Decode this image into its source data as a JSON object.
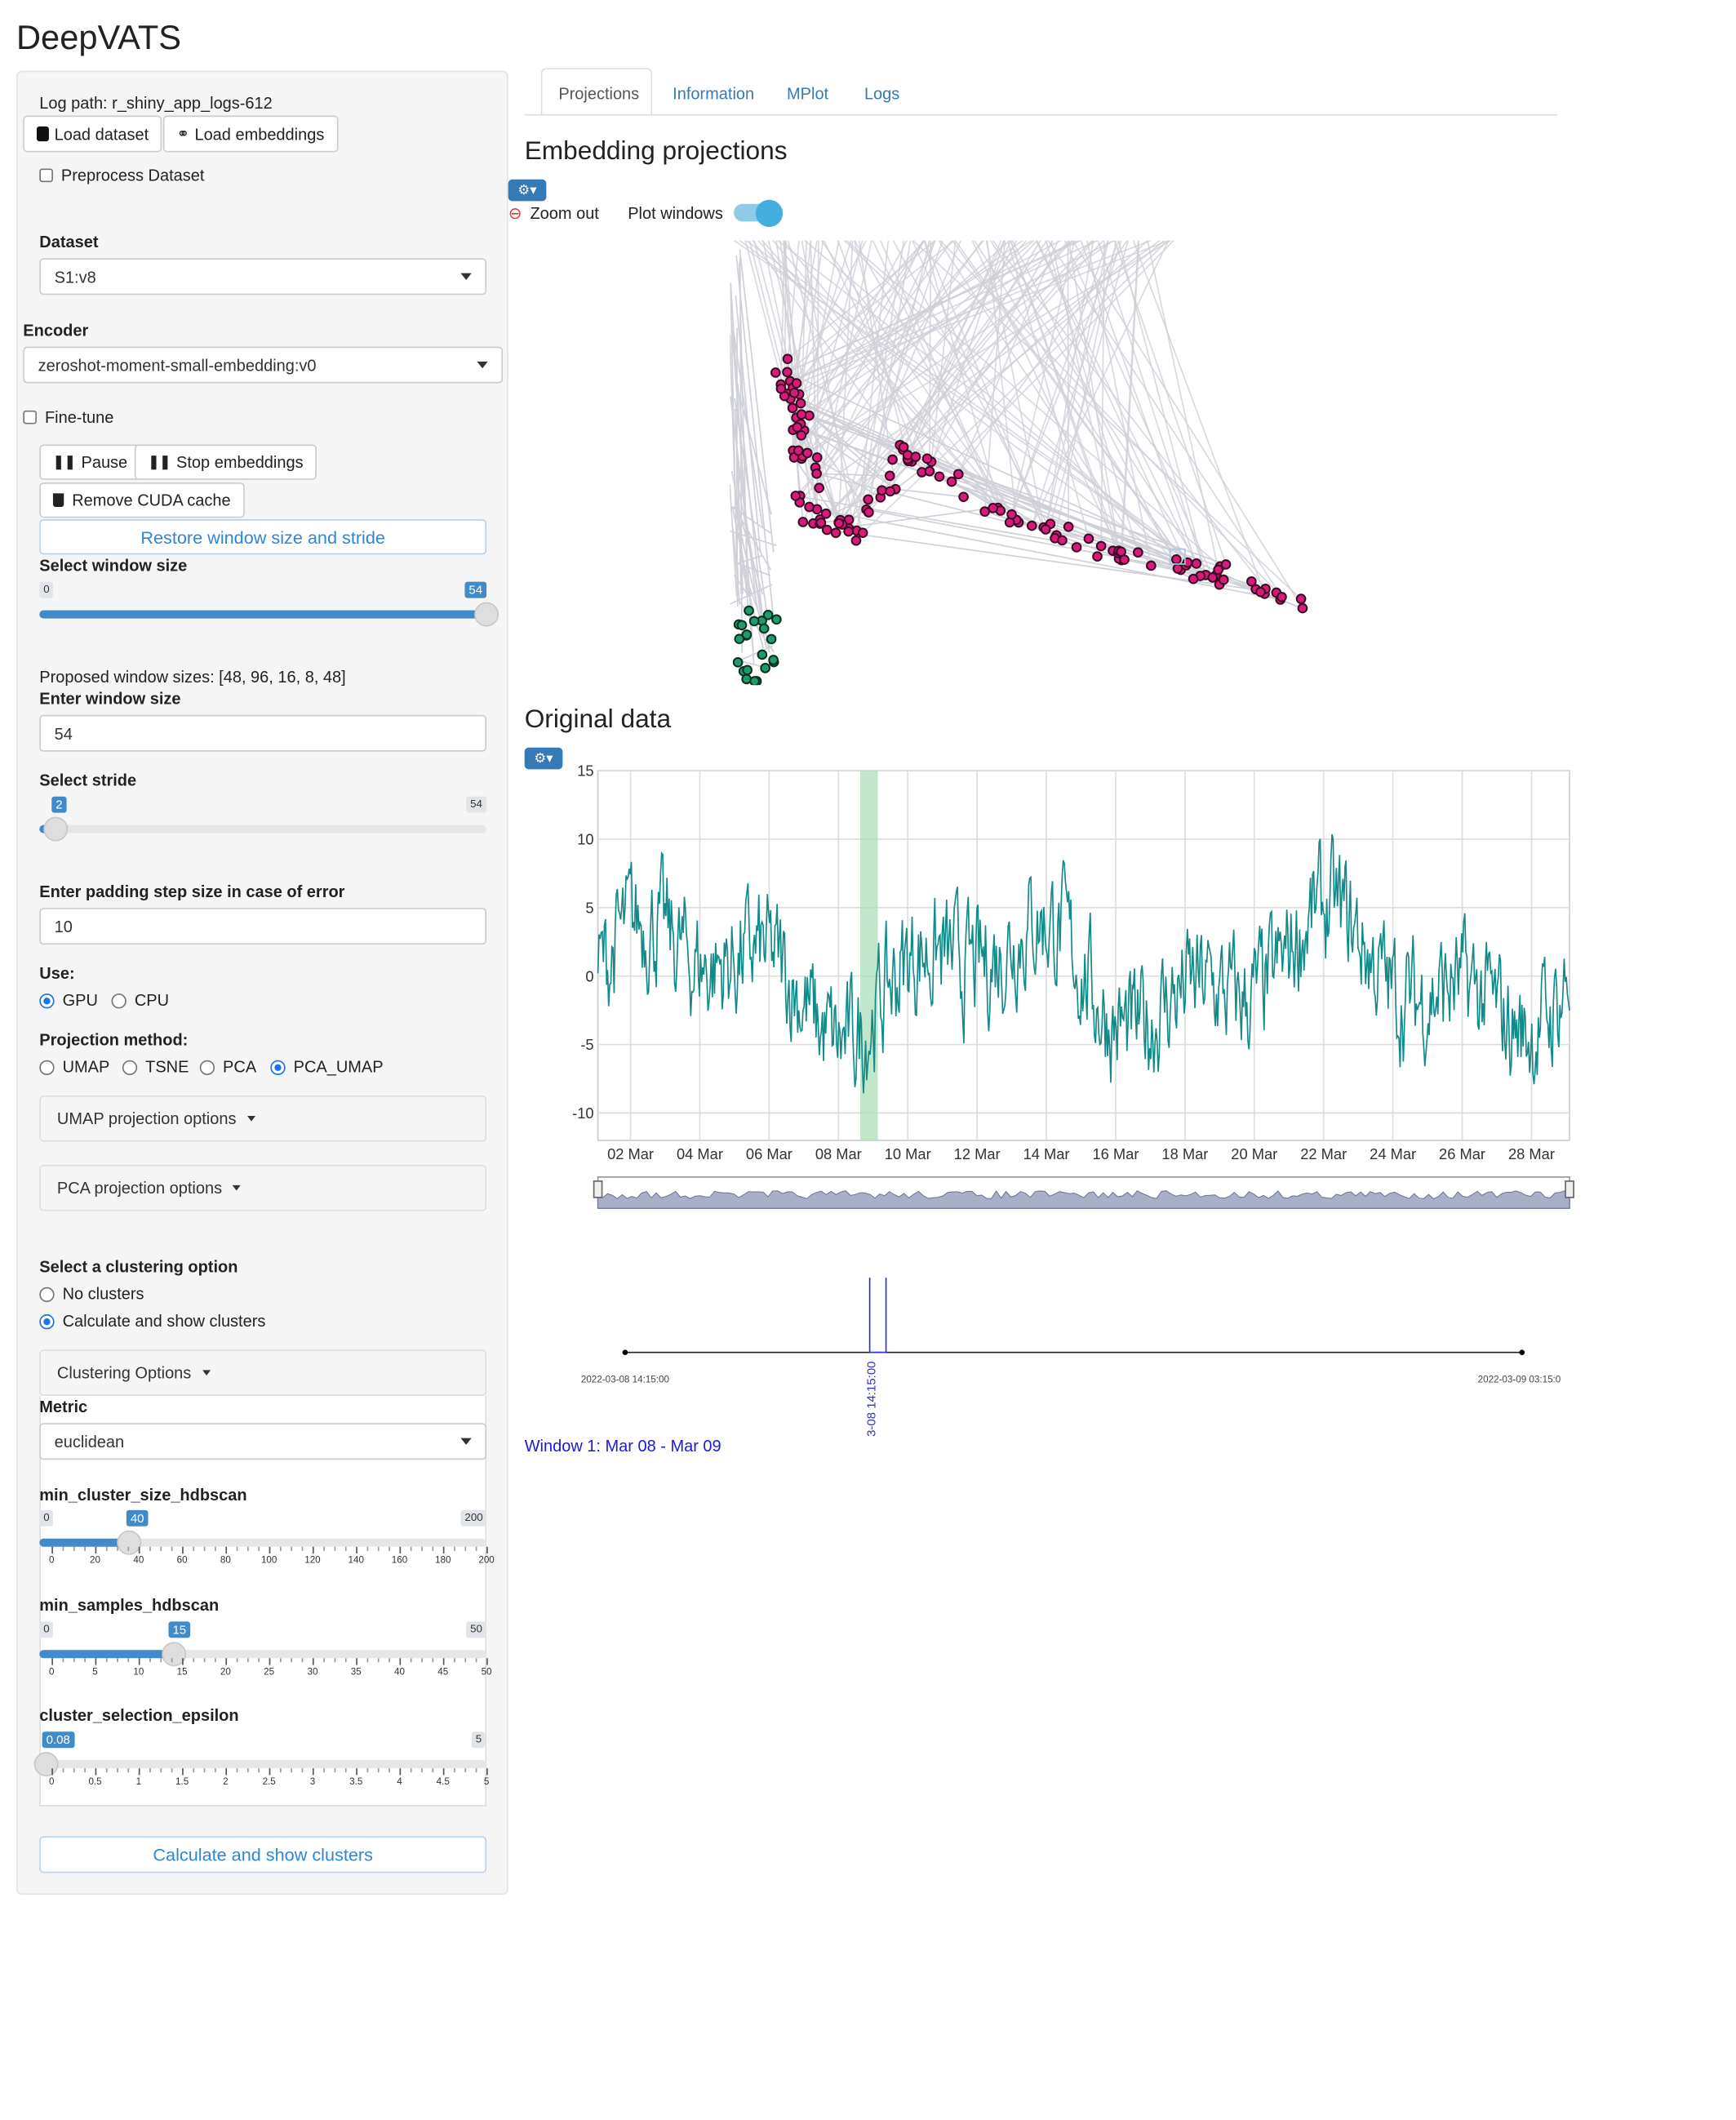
{
  "app_title": "DeepVATS",
  "sidebar": {
    "log_path": "Log path: r_shiny_app_logs-612",
    "load_dataset": "Load dataset",
    "load_embeddings": "Load embeddings",
    "preprocess": "Preprocess Dataset",
    "dataset_label": "Dataset",
    "dataset_value": "S1:v8",
    "encoder_label": "Encoder",
    "encoder_value": "zeroshot-moment-small-embedding:v0",
    "finetune": "Fine-tune",
    "pause": "Pause",
    "stop_embeddings": "Stop embeddings",
    "remove_cuda": "Remove CUDA cache",
    "restore": "Restore window size and stride",
    "window_size_label": "Select window size",
    "window_size": {
      "min": "0",
      "max": "54",
      "value": "54",
      "fraction": 1.0
    },
    "proposed": "Proposed window sizes: [48, 96, 16, 8, 48]",
    "enter_window_label": "Enter window size",
    "enter_window_value": "54",
    "stride_label": "Select stride",
    "stride": {
      "min": "",
      "max": "54",
      "value": "2",
      "fraction": 0.037
    },
    "padding_label": "Enter padding step size in case of error",
    "padding_value": "10",
    "use_label": "Use:",
    "use_options": [
      "GPU",
      "CPU"
    ],
    "use_selected": "GPU",
    "projection_label": "Projection method:",
    "projection_options": [
      "UMAP",
      "TSNE",
      "PCA",
      "PCA_UMAP"
    ],
    "projection_selected": "PCA_UMAP",
    "umap_options": "UMAP projection options",
    "pca_options": "PCA projection options",
    "clustering_label": "Select a clustering option",
    "clustering_options": [
      "No clusters",
      "Calculate and show clusters"
    ],
    "clustering_selected": "Calculate and show clusters",
    "clustering_panel": "Clustering Options",
    "metric_label": "Metric",
    "metric_value": "euclidean",
    "min_cluster": {
      "label": "min_cluster_size_hdbscan",
      "min": "0",
      "max": "200",
      "value": "40",
      "fraction": 0.2,
      "ticks": [
        "0",
        "20",
        "40",
        "60",
        "80",
        "100",
        "120",
        "140",
        "160",
        "180",
        "200"
      ]
    },
    "min_samples": {
      "label": "min_samples_hdbscan",
      "min": "0",
      "max": "50",
      "value": "15",
      "fraction": 0.3,
      "ticks": [
        "0",
        "5",
        "10",
        "15",
        "20",
        "25",
        "30",
        "35",
        "40",
        "45",
        "50"
      ]
    },
    "epsilon": {
      "label": "cluster_selection_epsilon",
      "min": "",
      "max": "5",
      "value": "0.08",
      "fraction": 0.016,
      "ticks": [
        "0",
        "0.5",
        "1",
        "1.5",
        "2",
        "2.5",
        "3",
        "3.5",
        "4",
        "4.5",
        "5"
      ]
    },
    "calc_button": "Calculate and show clusters"
  },
  "tabs": [
    "Projections",
    "Information",
    "MPlot",
    "Logs"
  ],
  "active_tab": "Projections",
  "projections": {
    "title": "Embedding projections",
    "zoom_out": "Zoom out",
    "plot_windows": "Plot windows",
    "plot_windows_on": true
  },
  "original": {
    "title": "Original data",
    "color": "#138a8a",
    "highlight_color": "#a8dcb4"
  },
  "chart_data": {
    "type": "line",
    "title": "",
    "xlabel": "",
    "ylabel": "",
    "yticks": [
      "15",
      "10",
      "5",
      "0",
      "-5",
      "-10"
    ],
    "xticks": [
      "02 Mar",
      "04 Mar",
      "06 Mar",
      "08 Mar",
      "10 Mar",
      "12 Mar",
      "14 Mar",
      "16 Mar",
      "18 Mar",
      "20 Mar",
      "22 Mar",
      "24 Mar",
      "26 Mar",
      "28 Mar"
    ],
    "ylim": [
      -12,
      15
    ],
    "highlight": {
      "from": "08 Mar",
      "to": "09 Mar"
    }
  },
  "timeline": {
    "start": "2022-03-08 14:15:00",
    "end": "2022-03-09 03:15:0",
    "marker": "3-08 14:15:00"
  },
  "window_label": "Window 1: Mar 08 - Mar 09"
}
